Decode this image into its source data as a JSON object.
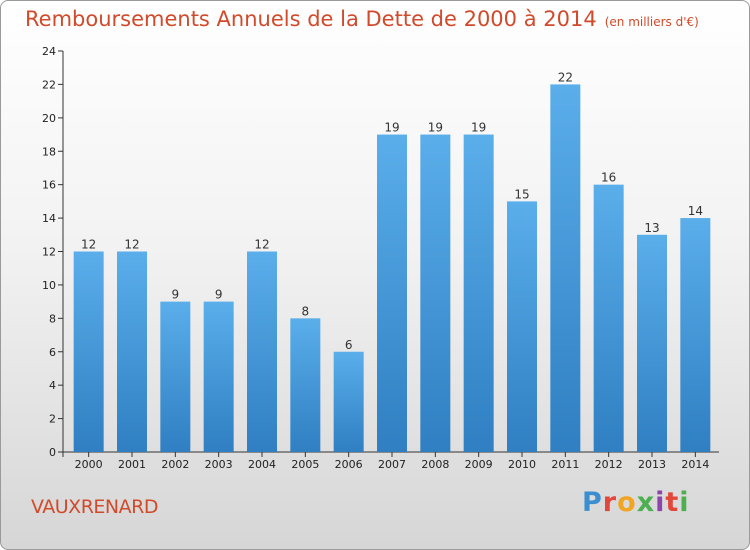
{
  "header": {
    "title": "Remboursements Annuels de la Dette de 2000 à 2014",
    "subtitle": "(en milliers d'€)"
  },
  "footer": {
    "commune": "VAUXRENARD",
    "logo": "Proxiti"
  },
  "colors": {
    "bar_light": "#5aaeea",
    "bar_dark": "#2f7fc2",
    "title": "#d14a2a"
  },
  "chart_data": {
    "type": "bar",
    "title": "Remboursements Annuels de la Dette de 2000 à 2014",
    "subtitle": "(en milliers d'€)",
    "xlabel": "",
    "ylabel": "",
    "categories": [
      "2000",
      "2001",
      "2002",
      "2003",
      "2004",
      "2005",
      "2006",
      "2007",
      "2008",
      "2009",
      "2010",
      "2011",
      "2012",
      "2013",
      "2014"
    ],
    "values": [
      12,
      12,
      9,
      9,
      12,
      8,
      6,
      19,
      19,
      19,
      15,
      22,
      16,
      13,
      14
    ],
    "ylim": [
      0,
      24
    ],
    "yticks": [
      0,
      2,
      4,
      6,
      8,
      10,
      12,
      14,
      16,
      18,
      20,
      22,
      24
    ],
    "grid": false,
    "data_labels": true
  }
}
